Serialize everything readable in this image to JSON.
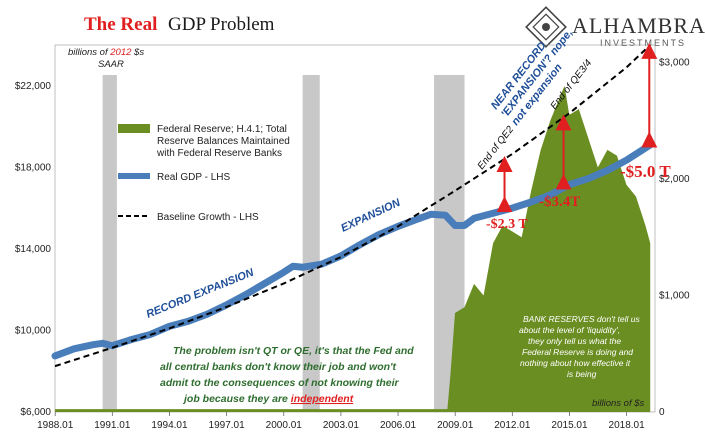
{
  "title": {
    "part1": "The Real",
    "part2": "GDP Problem"
  },
  "logo": {
    "name": "ALHAMBRA",
    "sub": "INVESTMENTS"
  },
  "units": {
    "lhs_line1_pre": "billions of",
    "lhs_year": "2012",
    "lhs_line1_post": "$s",
    "lhs_line2": "SAAR",
    "rhs": "billions of $s"
  },
  "legend": {
    "reserves": [
      "Federal Reserve; H.4.1; Total",
      "Reserve Balances Maintained",
      "with Federal Reserve Banks"
    ],
    "gdp": "Real GDP - LHS",
    "baseline": "Baseline Growth - LHS"
  },
  "annotations": {
    "record_expansion": "RECORD EXPANSION",
    "expansion": "EXPANSION",
    "near_record": [
      "NEAR RECORD",
      "'EXPANSION'? nope,",
      "not expansion"
    ],
    "end_qe2": "End of QE2",
    "end_qe34": "End of QE3/4",
    "gap1": "-$2.3 T",
    "gap2": "-$3.4T",
    "gap3": "-$5.0 T"
  },
  "note": {
    "lines": [
      "The problem isn't QT or QE, it's that the Fed and",
      "all central banks don't know their job and won't",
      "admit to the consequences of not knowing their",
      "job because they are "
    ],
    "emphasis": "independent"
  },
  "reserve_note": [
    "BANK RESERVES don't tell us",
    "about the level of 'liquidity',",
    "they only tell us what the",
    "Federal Reserve is doing and",
    "nothing about how effective it",
    "is being"
  ],
  "colors": {
    "gdp": "#4a7ebb",
    "baseline": "#000000",
    "reserves": "#6b8e23",
    "recession": "#c8c8c8",
    "accent": "#e02020"
  },
  "chart_data": {
    "type": "line",
    "title": "The Real GDP Problem",
    "x_ticks": [
      "1988.01",
      "1991.01",
      "1994.01",
      "1997.01",
      "2000.01",
      "2003.01",
      "2006.01",
      "2009.01",
      "2012.01",
      "2015.01",
      "2018.01"
    ],
    "x_range": [
      1988.0,
      2019.5
    ],
    "y_left": {
      "label": "billions of 2012 $s SAAR",
      "range": [
        6000,
        24000
      ],
      "ticks": [
        "$6,000",
        "$10,000",
        "$14,000",
        "$18,000",
        "$22,000"
      ],
      "tick_values": [
        6000,
        10000,
        14000,
        18000,
        22000
      ]
    },
    "y_right": {
      "label": "billions of $s",
      "range": [
        0,
        3150
      ],
      "ticks": [
        "0",
        "$1,000",
        "$2,000",
        "$3,000"
      ],
      "tick_values": [
        0,
        1000,
        2000,
        3000
      ]
    },
    "recessions": [
      [
        1990.5,
        1991.25
      ],
      [
        2001.0,
        2001.9
      ],
      [
        2007.9,
        2009.5
      ]
    ],
    "series": [
      {
        "name": "Real GDP - LHS",
        "axis": "left",
        "x": [
          1988.0,
          1989.0,
          1990.0,
          1990.5,
          1991.0,
          1992.0,
          1993.0,
          1994.0,
          1995.0,
          1996.0,
          1997.0,
          1998.0,
          1999.0,
          2000.0,
          2000.5,
          2001.0,
          2002.0,
          2003.0,
          2004.0,
          2005.0,
          2006.0,
          2007.0,
          2007.75,
          2008.5,
          2009.0,
          2009.5,
          2010.0,
          2011.0,
          2012.0,
          2013.0,
          2014.0,
          2015.0,
          2016.0,
          2017.0,
          2018.0,
          2019.25
        ],
        "values": [
          8750,
          9100,
          9300,
          9370,
          9250,
          9550,
          9800,
          10200,
          10450,
          10800,
          11250,
          11750,
          12300,
          12850,
          13150,
          13100,
          13250,
          13650,
          14200,
          14700,
          15100,
          15450,
          15700,
          15650,
          15150,
          15150,
          15500,
          15750,
          16000,
          16300,
          16650,
          17150,
          17450,
          17850,
          18350,
          19100
        ]
      },
      {
        "name": "Baseline Growth - LHS",
        "axis": "left",
        "x": [
          1988.0,
          1991.0,
          1994.0,
          1997.0,
          2000.0,
          2003.0,
          2006.0,
          2009.0,
          2012.0,
          2015.0,
          2018.0,
          2019.25
        ],
        "values": [
          8250,
          9150,
          10100,
          11150,
          12300,
          13600,
          15100,
          16850,
          18650,
          20650,
          22900,
          24000
        ]
      },
      {
        "name": "Federal Reserve; H.4.1; Total Reserve Balances Maintained with Federal Reserve Banks",
        "axis": "right",
        "x": [
          1988.0,
          2008.6,
          2008.75,
          2009.0,
          2009.5,
          2010.0,
          2010.5,
          2011.0,
          2011.5,
          2012.0,
          2012.5,
          2013.0,
          2013.5,
          2014.0,
          2014.5,
          2014.75,
          2015.0,
          2015.5,
          2016.0,
          2016.5,
          2017.0,
          2017.5,
          2018.0,
          2018.5,
          2019.0,
          2019.25
        ],
        "values": [
          25,
          25,
          300,
          850,
          900,
          1100,
          1000,
          1450,
          1600,
          1550,
          1500,
          1900,
          2250,
          2500,
          2700,
          2800,
          2550,
          2600,
          2350,
          2100,
          2250,
          2200,
          1950,
          1850,
          1600,
          1450
        ]
      }
    ],
    "gaps": [
      {
        "label": "-$2.3 T",
        "x": 2011.6
      },
      {
        "label": "-$3.4T",
        "x": 2014.7
      },
      {
        "label": "-$5.0 T",
        "x": 2019.2
      }
    ]
  }
}
